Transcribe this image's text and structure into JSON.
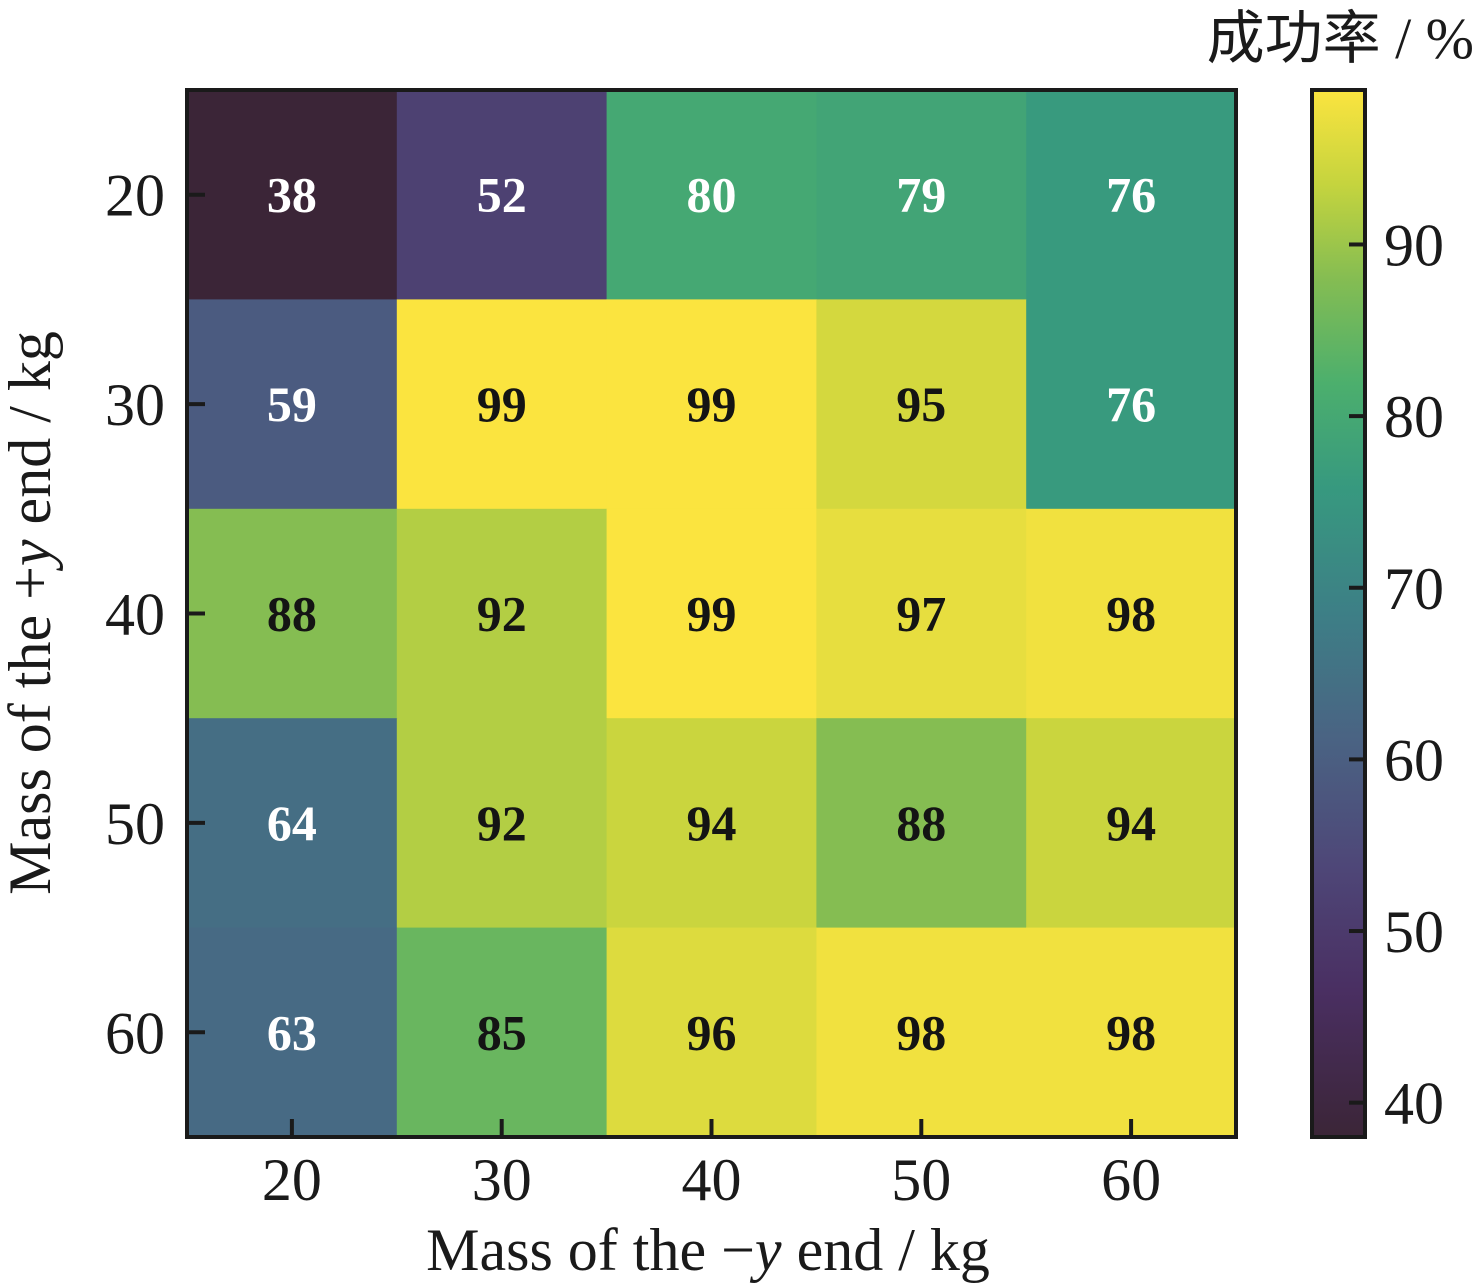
{
  "chart_data": {
    "type": "heatmap",
    "x_categories": [
      "20",
      "30",
      "40",
      "50",
      "60"
    ],
    "y_categories": [
      "20",
      "30",
      "40",
      "50",
      "60"
    ],
    "values": [
      [
        38,
        52,
        80,
        79,
        76
      ],
      [
        59,
        99,
        99,
        95,
        76
      ],
      [
        88,
        92,
        99,
        97,
        98
      ],
      [
        64,
        92,
        94,
        88,
        94
      ],
      [
        63,
        85,
        96,
        98,
        98
      ]
    ],
    "xlabel_parts": [
      "Mass of the −",
      "y",
      " end / kg"
    ],
    "ylabel_parts": [
      "Mass of the +",
      "y",
      " end / kg"
    ],
    "colorbar": {
      "title": "成功率 / %",
      "ticks": [
        "40",
        "50",
        "60",
        "70",
        "80",
        "90"
      ],
      "range": [
        38,
        99
      ],
      "colormap": "viridis"
    }
  }
}
